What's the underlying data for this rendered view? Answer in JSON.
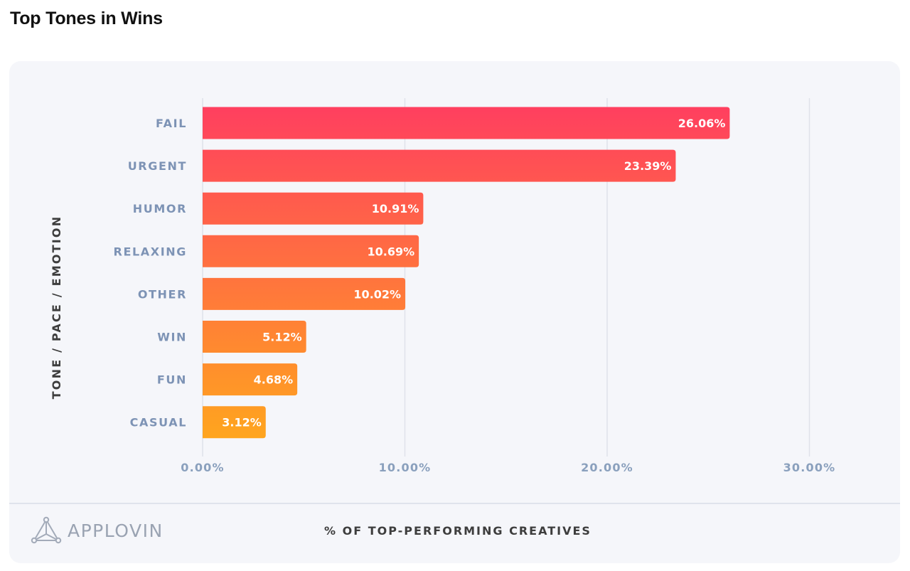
{
  "page_title": "Top Tones in Wins",
  "brand": {
    "name": "APPLOVIN",
    "logo_icon": "applovin-triangle-logo-icon"
  },
  "colors": {
    "bar_start": "#ff3f5f",
    "bar_end": "#ffa51e",
    "card_bg": "#f5f6fa",
    "axis_label": "#7d93b5"
  },
  "chart_data": {
    "type": "bar",
    "orientation": "horizontal",
    "title": "Top Tones in Wins",
    "xlabel": "% OF TOP-PERFORMING CREATIVES",
    "ylabel": "TONE / PACE / EMOTION",
    "categories": [
      "FAIL",
      "URGENT",
      "HUMOR",
      "RELAXING",
      "OTHER",
      "WIN",
      "FUN",
      "CASUAL"
    ],
    "values": [
      26.06,
      23.39,
      10.91,
      10.69,
      10.02,
      5.12,
      4.68,
      3.12
    ],
    "data_labels": [
      "26.06%",
      "23.39%",
      "10.91%",
      "10.69%",
      "10.02%",
      "5.12%",
      "4.68%",
      "3.12%"
    ],
    "xlim": [
      0,
      30
    ],
    "xticks": [
      0,
      10,
      20,
      30
    ],
    "xtick_labels": [
      "0.00%",
      "10.00%",
      "20.00%",
      "30.00%"
    ],
    "grid": true,
    "legend": "none"
  }
}
